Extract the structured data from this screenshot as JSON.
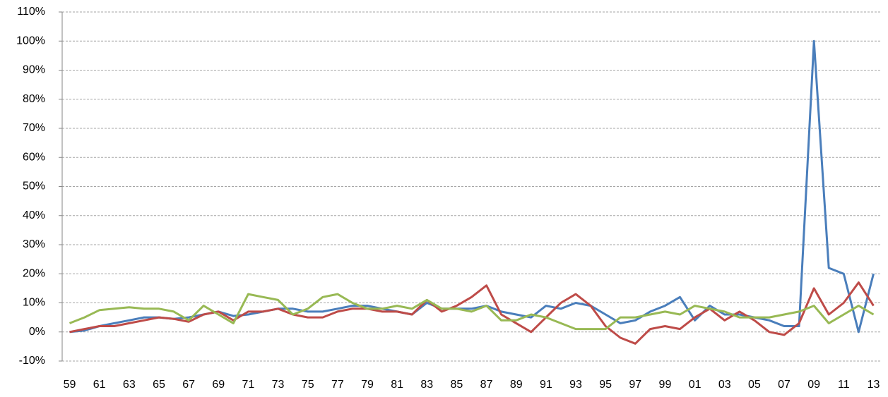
{
  "chart_data": {
    "type": "line",
    "categories": [
      "59",
      null,
      "61",
      null,
      "63",
      null,
      "65",
      null,
      "67",
      null,
      "69",
      null,
      "71",
      null,
      "73",
      null,
      "75",
      null,
      "77",
      null,
      "79",
      null,
      "81",
      null,
      "83",
      null,
      "85",
      null,
      "87",
      null,
      "89",
      null,
      "91",
      null,
      "93",
      null,
      "95",
      null,
      "97",
      null,
      "99",
      null,
      "01",
      null,
      "03",
      null,
      "05",
      null,
      "07",
      null,
      "09",
      null,
      "11",
      null,
      "13"
    ],
    "series": [
      {
        "color": "#4a7ebb",
        "values": [
          0,
          0.5,
          2,
          3,
          4,
          5,
          5,
          4.5,
          5,
          6,
          7,
          5.5,
          6,
          7,
          8,
          8,
          7,
          7,
          8,
          9,
          9,
          8,
          7,
          6,
          10,
          8,
          8,
          8,
          9,
          7,
          6,
          5,
          9,
          8,
          10,
          9,
          6,
          3,
          4,
          7,
          9,
          12,
          4,
          9,
          6,
          6,
          5,
          4,
          2,
          2,
          100,
          22,
          20,
          0,
          20
        ]
      },
      {
        "color": "#be4b48",
        "values": [
          0,
          1,
          2,
          2,
          3,
          4,
          5,
          4.5,
          3.5,
          6,
          7,
          4,
          7,
          7,
          8,
          6,
          5,
          5,
          7,
          8,
          8,
          7,
          7,
          6,
          11,
          7,
          9,
          12,
          16,
          6,
          3,
          0,
          5,
          10,
          13,
          9,
          2,
          -2,
          -4,
          1,
          2,
          1,
          5,
          8,
          4,
          7,
          4,
          0,
          -1,
          3,
          15,
          6,
          10,
          17,
          9
        ]
      },
      {
        "color": "#98b954",
        "values": [
          3,
          5,
          7.5,
          8,
          8.5,
          8,
          8,
          7,
          4,
          9,
          6,
          3,
          13,
          12,
          11,
          6,
          8,
          12,
          13,
          10,
          8,
          8,
          9,
          8,
          11,
          8,
          8,
          7,
          9,
          4,
          4,
          6,
          5,
          3,
          1,
          1,
          1,
          5,
          5,
          6,
          7,
          6,
          9,
          8,
          7,
          5,
          5,
          5,
          6,
          7,
          9,
          3,
          6,
          9,
          6
        ]
      }
    ],
    "ylim": [
      -10,
      110
    ],
    "yticks": [
      {
        "value": -10,
        "label": "-10%"
      },
      {
        "value": 0,
        "label": "0%"
      },
      {
        "value": 10,
        "label": "10%"
      },
      {
        "value": 20,
        "label": "20%"
      },
      {
        "value": 30,
        "label": "30%"
      },
      {
        "value": 40,
        "label": "40%"
      },
      {
        "value": 50,
        "label": "50%"
      },
      {
        "value": 60,
        "label": "60%"
      },
      {
        "value": 70,
        "label": "70%"
      },
      {
        "value": 80,
        "label": "80%"
      },
      {
        "value": 90,
        "label": "90%"
      },
      {
        "value": 100,
        "label": "100%"
      },
      {
        "value": 110,
        "label": "110%"
      }
    ],
    "grid": true
  }
}
